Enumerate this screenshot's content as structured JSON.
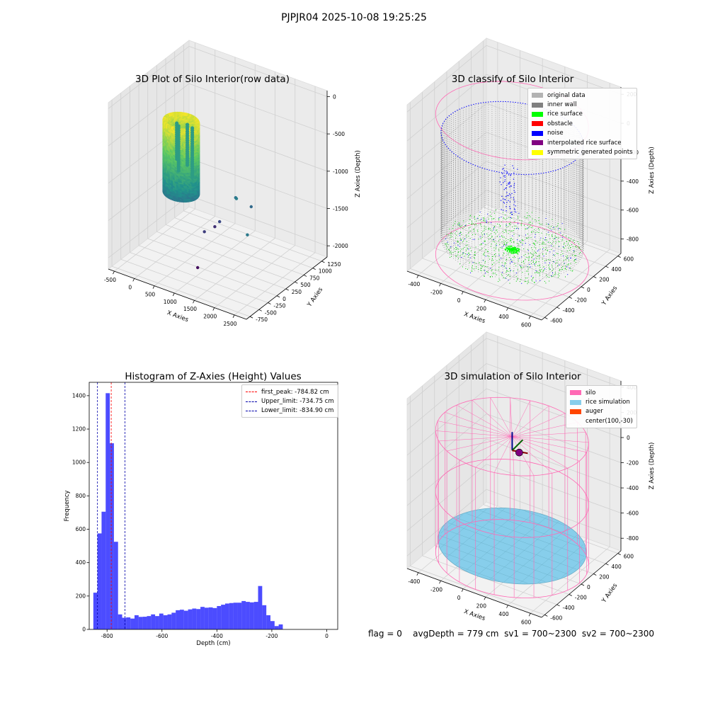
{
  "figure": {
    "suptitle": "PJPJR04 2025-10-08 19:25:25",
    "footer": {
      "flag": "flag = 0",
      "avg_depth": "avgDepth = 779 cm",
      "sv1": "sv1 = 700~2300",
      "sv2": "sv2 = 700~2300"
    }
  },
  "chart_data": [
    {
      "type": "scatter",
      "title": "3D Plot of Silo Interior(row data)",
      "xlabel": "X Axies",
      "ylabel": "Y Axies",
      "zlabel": "Z Axies (Depth)",
      "x_ticks": [
        -500,
        0,
        500,
        1000,
        1500,
        2000,
        2500
      ],
      "y_ticks": [
        -750,
        -500,
        -250,
        0,
        250,
        500,
        750,
        1000,
        1250
      ],
      "z_ticks": [
        -2000,
        -1500,
        -1000,
        -500,
        0
      ],
      "xlim": [
        -650,
        2800
      ],
      "ylim": [
        -850,
        1400
      ],
      "zlim": [
        -2150,
        80
      ],
      "colormap": "viridis",
      "main_cloud": {
        "shape": "cylinder",
        "center": [
          50,
          400
        ],
        "radius": 370,
        "z_range": [
          -1450,
          -500
        ]
      },
      "outlier_points": [
        [
          1500,
          300,
          -1200
        ],
        [
          1700,
          100,
          -1100
        ],
        [
          1800,
          400,
          -1300
        ],
        [
          1100,
          300,
          -1600
        ],
        [
          900,
          100,
          -1700
        ],
        [
          800,
          500,
          -1800
        ],
        [
          1000,
          -200,
          -2050
        ],
        [
          2600,
          -600,
          -1150
        ]
      ]
    },
    {
      "type": "scatter",
      "title": "3D classify of Silo Interior",
      "xlabel": "X Axies",
      "ylabel": "Y Axies",
      "zlabel": "Z Axies (Depth)",
      "x_ticks": [
        -400,
        -200,
        0,
        200,
        400,
        600
      ],
      "y_ticks": [
        -600,
        -400,
        -200,
        0,
        200,
        400,
        600
      ],
      "z_ticks": [
        -800,
        -600,
        -400,
        -200,
        0,
        200
      ],
      "xlim": [
        -500,
        700
      ],
      "ylim": [
        -650,
        650
      ],
      "zlim": [
        -900,
        250
      ],
      "silo": {
        "center": [
          100,
          -30
        ],
        "radius": 600,
        "z_range": [
          -880,
          90
        ]
      },
      "legend": [
        {
          "label": "original data",
          "color": "#b3b3b3"
        },
        {
          "label": "inner wall",
          "color": "#808080"
        },
        {
          "label": "rice surface",
          "color": "#00ff00"
        },
        {
          "label": "obstacle",
          "color": "#ff0000"
        },
        {
          "label": "noise",
          "color": "#0000ff"
        },
        {
          "label": "interpolated rice surface",
          "color": "#800080"
        },
        {
          "label": "symmetric generated points",
          "color": "#ffff00"
        }
      ],
      "colors": {
        "silo_wire": "#ff69b4"
      }
    },
    {
      "type": "bar",
      "title": "Histogram of Z-Axies (Height) Values",
      "xlabel": "Depth (cm)",
      "ylabel": "Frequency",
      "xlim": [
        -865,
        40
      ],
      "ylim": [
        0,
        1480
      ],
      "x_ticks": [
        -800,
        -600,
        -400,
        -200,
        0
      ],
      "y_ticks": [
        0,
        200,
        400,
        600,
        800,
        1000,
        1200,
        1400
      ],
      "bin_start": -850,
      "bin_width": 15,
      "values": [
        220,
        575,
        705,
        1415,
        1115,
        525,
        90,
        70,
        72,
        65,
        85,
        75,
        76,
        80,
        90,
        80,
        95,
        85,
        90,
        100,
        115,
        118,
        112,
        120,
        125,
        122,
        135,
        130,
        132,
        128,
        140,
        148,
        155,
        158,
        160,
        160,
        170,
        165,
        162,
        165,
        260,
        145,
        85,
        50,
        20,
        30
      ],
      "bar_color": "#0000ff",
      "vlines": [
        {
          "label": "first_peak: -784.82 cm",
          "x": -784.82,
          "color": "#ff0000"
        },
        {
          "label": "Upper_limit: -734.75 cm",
          "x": -734.75,
          "color": "#0000aa"
        },
        {
          "label": "Lower_limit: -834.90 cm",
          "x": -834.9,
          "color": "#0000aa"
        }
      ]
    },
    {
      "type": "scatter",
      "title": "3D simulation of Silo Interior",
      "xlabel": "X Axies",
      "ylabel": "Y Axies",
      "zlabel": "Z Axies (Depth)",
      "x_ticks": [
        -400,
        -200,
        0,
        200,
        400,
        600
      ],
      "y_ticks": [
        -600,
        -400,
        -200,
        0,
        200,
        400,
        600
      ],
      "z_ticks": [
        -800,
        -600,
        -400,
        -200,
        0,
        200,
        400
      ],
      "xlim": [
        -500,
        700
      ],
      "ylim": [
        -650,
        650
      ],
      "zlim": [
        -900,
        450
      ],
      "silo": {
        "center": [
          100,
          -30
        ],
        "radius": 600,
        "z_range": [
          -880,
          90
        ]
      },
      "rice_depth": -779,
      "legend": [
        {
          "label": "silo",
          "color": "#ff69b4"
        },
        {
          "label": "rice simulation",
          "color": "#87ceeb"
        },
        {
          "label": "auger",
          "color": "#ff4500"
        },
        {
          "label": "center(100,-30)",
          "color": ""
        }
      ]
    }
  ]
}
